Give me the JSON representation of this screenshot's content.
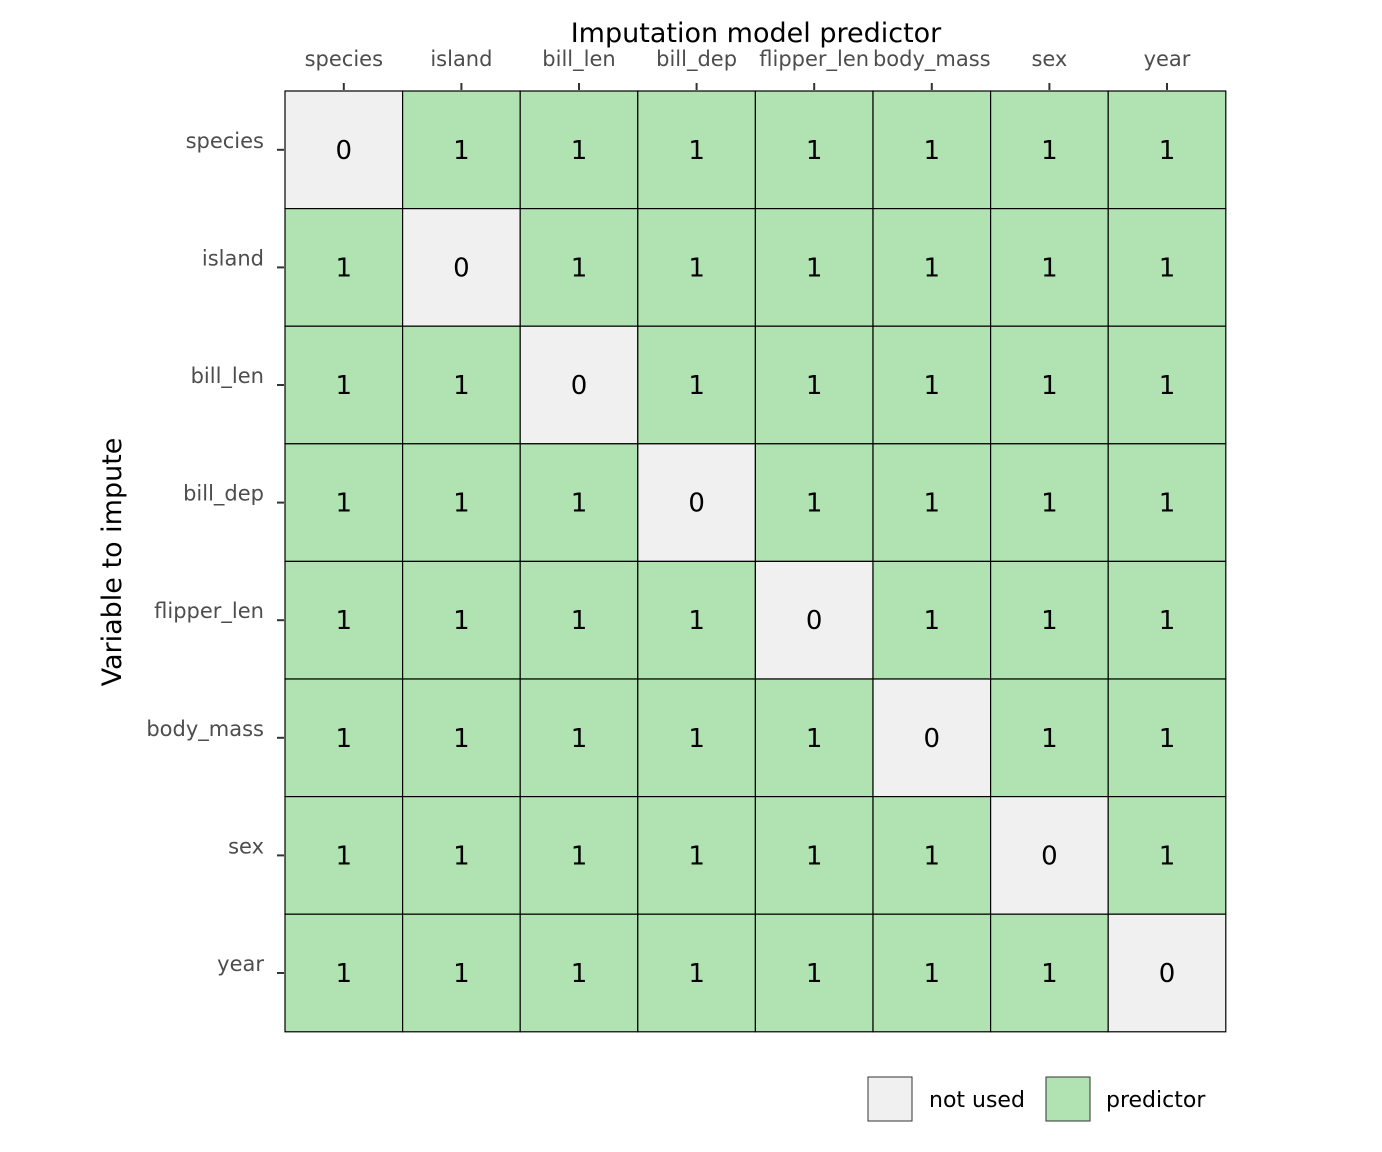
{
  "chart_data": {
    "type": "heatmap",
    "title": "",
    "xlabel": "Imputation model predictor",
    "ylabel": "Variable to impute",
    "x_categories": [
      "species",
      "island",
      "bill_len",
      "bill_dep",
      "flipper_len",
      "body_mass",
      "sex",
      "year"
    ],
    "y_categories": [
      "species",
      "island",
      "bill_len",
      "bill_dep",
      "flipper_len",
      "body_mass",
      "sex",
      "year"
    ],
    "values": [
      [
        0,
        1,
        1,
        1,
        1,
        1,
        1,
        1
      ],
      [
        1,
        0,
        1,
        1,
        1,
        1,
        1,
        1
      ],
      [
        1,
        1,
        0,
        1,
        1,
        1,
        1,
        1
      ],
      [
        1,
        1,
        1,
        0,
        1,
        1,
        1,
        1
      ],
      [
        1,
        1,
        1,
        1,
        0,
        1,
        1,
        1
      ],
      [
        1,
        1,
        1,
        1,
        1,
        0,
        1,
        1
      ],
      [
        1,
        1,
        1,
        1,
        1,
        1,
        0,
        1
      ],
      [
        1,
        1,
        1,
        1,
        1,
        1,
        1,
        0
      ]
    ],
    "x_axis_position": "top",
    "grid": false,
    "legend": {
      "position": "bottom-right",
      "entries": [
        {
          "label": "not used",
          "value": 0,
          "color": "#f0f0f0"
        },
        {
          "label": "predictor",
          "value": 1,
          "color": "#b1e2b1"
        }
      ]
    },
    "colors": {
      "not_used": "#f0f0f0",
      "predictor": "#b1e2b1",
      "border": "#000000"
    }
  }
}
